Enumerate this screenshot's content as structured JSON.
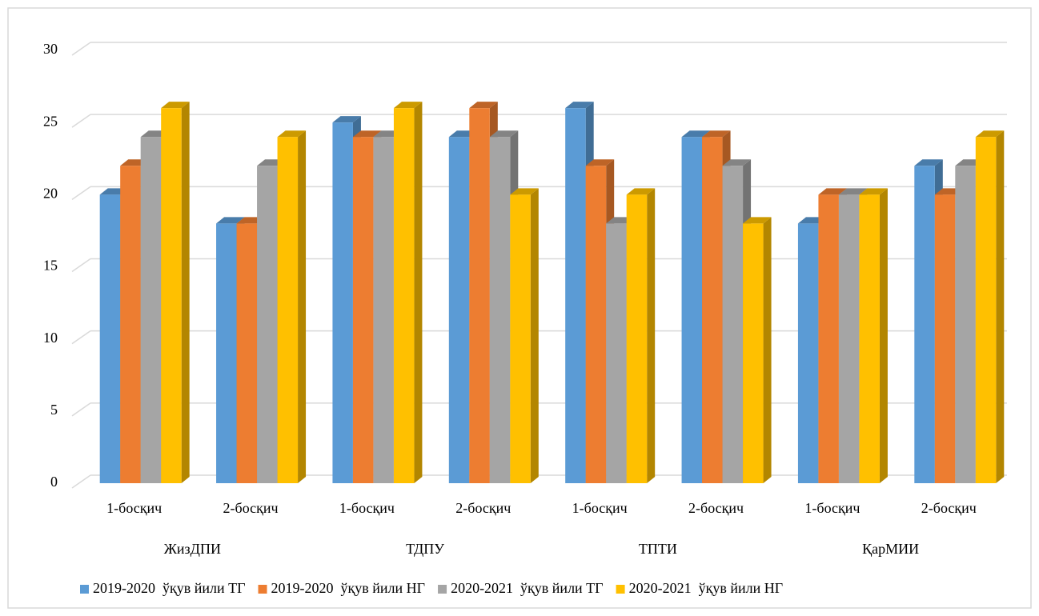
{
  "chart_data": {
    "type": "bar3d",
    "categories": [
      "1-босқич",
      "2-босқич",
      "1-босқич",
      "2-босқич",
      "1-босқич",
      "2-босқич",
      "1-босқич",
      "2-босқич"
    ],
    "groups": [
      "ЖизДПИ",
      "ТДПУ",
      "ТПТИ",
      "ҚарМИИ"
    ],
    "series": [
      {
        "name": "2019-2020  ўқув йили ТГ",
        "color": "#5b9bd5",
        "values": [
          20,
          18,
          25,
          24,
          26,
          24,
          18,
          22
        ]
      },
      {
        "name": "2019-2020  ўқув йили НГ",
        "color": "#ed7d31",
        "values": [
          22,
          18,
          24,
          26,
          22,
          24,
          20,
          20
        ]
      },
      {
        "name": "2020-2021  ўқув йили ТГ",
        "color": "#a5a5a5",
        "values": [
          24,
          22,
          24,
          24,
          18,
          22,
          20,
          22
        ]
      },
      {
        "name": "2020-2021  ўқув йили НГ",
        "color": "#ffc000",
        "values": [
          26,
          24,
          26,
          20,
          20,
          18,
          20,
          24
        ]
      }
    ],
    "ylim": [
      0,
      30
    ],
    "yticks": [
      0,
      5,
      10,
      15,
      20,
      25,
      30
    ],
    "grid": true,
    "legend": "bottom"
  }
}
